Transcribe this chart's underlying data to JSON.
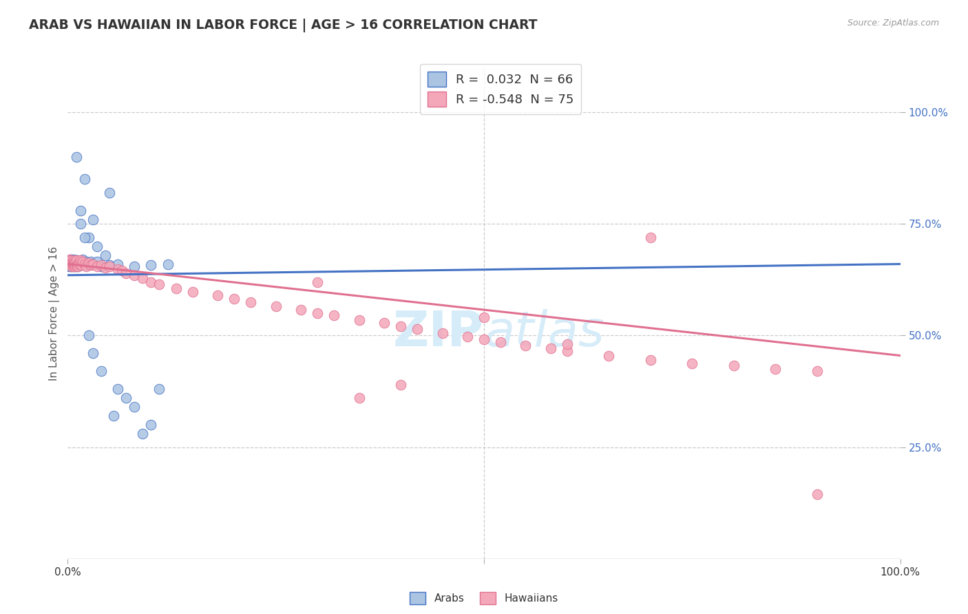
{
  "title": "ARAB VS HAWAIIAN IN LABOR FORCE | AGE > 16 CORRELATION CHART",
  "source_text": "Source: ZipAtlas.com",
  "ylabel": "In Labor Force | Age > 16",
  "xlim": [
    0,
    1.0
  ],
  "ylim": [
    0.0,
    1.1
  ],
  "right_ytick_labels": [
    "100.0%",
    "75.0%",
    "50.0%",
    "25.0%"
  ],
  "right_ytick_positions": [
    1.0,
    0.75,
    0.5,
    0.25
  ],
  "legend_r_arab": " 0.032",
  "legend_n_arab": "66",
  "legend_r_hawaiian": "-0.548",
  "legend_n_hawaiian": "75",
  "arab_color": "#aac4e2",
  "hawaiian_color": "#f4a7b9",
  "arab_line_color": "#4472c4",
  "hawaiian_line_color": "#e07090",
  "watermark_color": "#d6ecf8",
  "background_color": "#ffffff",
  "grid_color": "#cccccc",
  "arab_x": [
    0.001,
    0.002,
    0.002,
    0.003,
    0.003,
    0.003,
    0.004,
    0.004,
    0.005,
    0.005,
    0.005,
    0.006,
    0.006,
    0.006,
    0.007,
    0.007,
    0.007,
    0.008,
    0.008,
    0.008,
    0.009,
    0.009,
    0.01,
    0.01,
    0.01,
    0.011,
    0.011,
    0.012,
    0.012,
    0.013,
    0.014,
    0.015,
    0.016,
    0.018,
    0.02,
    0.022,
    0.025,
    0.028,
    0.03,
    0.035,
    0.04,
    0.05,
    0.06,
    0.08,
    0.1,
    0.12,
    0.05,
    0.02,
    0.03,
    0.01,
    0.015,
    0.025,
    0.035,
    0.045,
    0.055,
    0.07,
    0.09,
    0.11,
    0.015,
    0.02,
    0.025,
    0.03,
    0.04,
    0.06,
    0.08,
    0.1
  ],
  "arab_y": [
    0.655,
    0.66,
    0.665,
    0.658,
    0.662,
    0.67,
    0.655,
    0.668,
    0.66,
    0.665,
    0.67,
    0.655,
    0.662,
    0.668,
    0.658,
    0.663,
    0.67,
    0.655,
    0.66,
    0.665,
    0.658,
    0.665,
    0.655,
    0.66,
    0.668,
    0.658,
    0.665,
    0.655,
    0.668,
    0.66,
    0.658,
    0.665,
    0.66,
    0.67,
    0.658,
    0.665,
    0.658,
    0.665,
    0.66,
    0.665,
    0.655,
    0.658,
    0.66,
    0.655,
    0.658,
    0.66,
    0.82,
    0.85,
    0.76,
    0.9,
    0.75,
    0.72,
    0.7,
    0.68,
    0.32,
    0.36,
    0.28,
    0.38,
    0.78,
    0.72,
    0.5,
    0.46,
    0.42,
    0.38,
    0.34,
    0.3
  ],
  "hawaiian_x": [
    0.001,
    0.002,
    0.002,
    0.003,
    0.003,
    0.004,
    0.004,
    0.005,
    0.005,
    0.006,
    0.006,
    0.007,
    0.007,
    0.008,
    0.008,
    0.009,
    0.009,
    0.01,
    0.01,
    0.011,
    0.012,
    0.013,
    0.014,
    0.015,
    0.016,
    0.018,
    0.02,
    0.022,
    0.025,
    0.028,
    0.03,
    0.035,
    0.04,
    0.045,
    0.05,
    0.06,
    0.065,
    0.07,
    0.08,
    0.09,
    0.1,
    0.11,
    0.13,
    0.15,
    0.18,
    0.2,
    0.22,
    0.25,
    0.28,
    0.3,
    0.32,
    0.35,
    0.38,
    0.4,
    0.42,
    0.45,
    0.48,
    0.5,
    0.52,
    0.55,
    0.58,
    0.6,
    0.65,
    0.7,
    0.75,
    0.8,
    0.85,
    0.9,
    0.35,
    0.5,
    0.6,
    0.4,
    0.3,
    0.7,
    0.9
  ],
  "hawaiian_y": [
    0.665,
    0.66,
    0.67,
    0.658,
    0.665,
    0.66,
    0.668,
    0.655,
    0.662,
    0.658,
    0.665,
    0.66,
    0.668,
    0.655,
    0.662,
    0.658,
    0.665,
    0.66,
    0.668,
    0.658,
    0.655,
    0.662,
    0.66,
    0.668,
    0.658,
    0.665,
    0.66,
    0.655,
    0.662,
    0.658,
    0.66,
    0.655,
    0.658,
    0.652,
    0.655,
    0.648,
    0.645,
    0.64,
    0.635,
    0.628,
    0.62,
    0.615,
    0.605,
    0.598,
    0.59,
    0.582,
    0.575,
    0.565,
    0.558,
    0.55,
    0.545,
    0.535,
    0.528,
    0.52,
    0.515,
    0.505,
    0.498,
    0.492,
    0.485,
    0.478,
    0.472,
    0.465,
    0.455,
    0.445,
    0.438,
    0.432,
    0.425,
    0.42,
    0.36,
    0.54,
    0.48,
    0.39,
    0.62,
    0.72,
    0.145
  ]
}
